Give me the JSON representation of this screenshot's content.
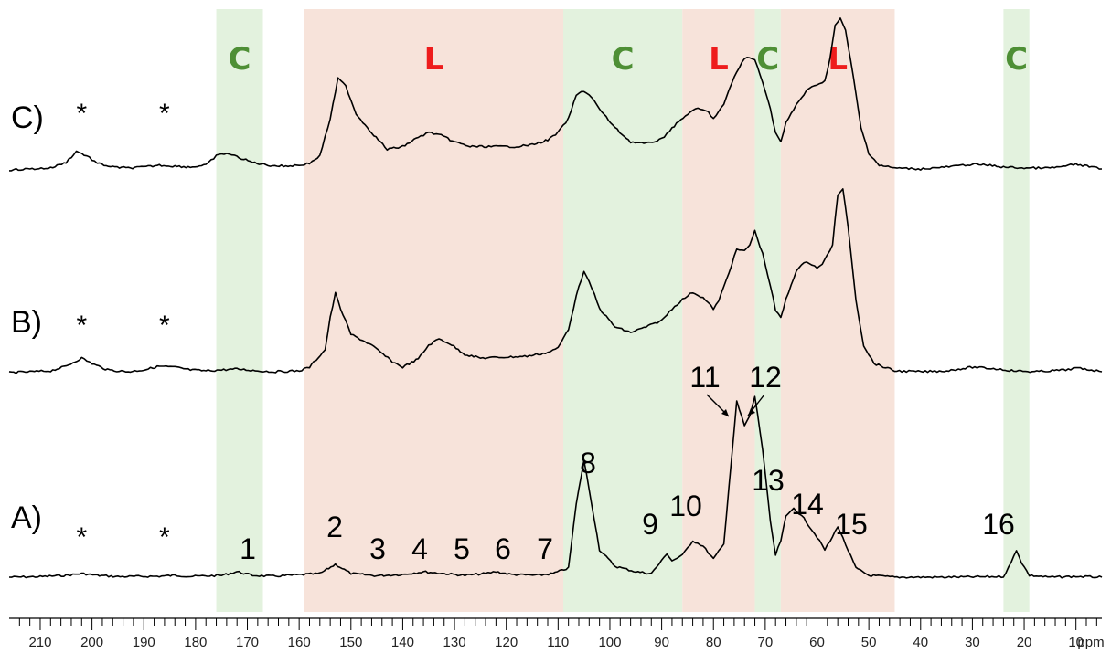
{
  "chart_data": {
    "type": "line",
    "x_axis": {
      "reversed": true,
      "range": [
        216,
        5
      ],
      "major_ticks": [
        210,
        200,
        190,
        180,
        170,
        160,
        150,
        140,
        130,
        120,
        110,
        100,
        90,
        80,
        70,
        60,
        50,
        40,
        30,
        20,
        10
      ],
      "unit_label": "ppm",
      "minor_tick_step": 2
    },
    "bands": [
      {
        "label": "C",
        "from": 176,
        "to": 167,
        "color": "#e3f2de",
        "label_color": "#4e8f35"
      },
      {
        "label": "L",
        "from": 159,
        "to": 109,
        "color": "#f7e3da",
        "label_color": "#ee1c1c"
      },
      {
        "label": "C",
        "from": 109,
        "to": 86,
        "color": "#e3f2de",
        "label_color": "#4e8f35"
      },
      {
        "label": "L",
        "from": 86,
        "to": 72,
        "color": "#f7e3da",
        "label_color": "#ee1c1c"
      },
      {
        "label": "C",
        "from": 72,
        "to": 67,
        "color": "#e3f2de",
        "label_color": "#4e8f35"
      },
      {
        "label": "L",
        "from": 67,
        "to": 45,
        "color": "#f7e3da",
        "label_color": "#ee1c1c"
      },
      {
        "label": "C",
        "from": 24,
        "to": 19,
        "color": "#e3f2de",
        "label_color": "#4e8f35"
      }
    ],
    "series": [
      {
        "name": "A)",
        "baseline_value": 0,
        "points": [
          [
            216,
            0
          ],
          [
            210,
            0.3
          ],
          [
            205,
            1
          ],
          [
            202,
            2
          ],
          [
            199,
            1
          ],
          [
            195,
            0.3
          ],
          [
            187,
            0.5
          ],
          [
            184,
            1
          ],
          [
            181,
            0.4
          ],
          [
            175,
            1
          ],
          [
            172,
            3
          ],
          [
            169,
            1
          ],
          [
            165,
            0.5
          ],
          [
            156,
            2
          ],
          [
            153,
            7
          ],
          [
            150,
            2
          ],
          [
            145,
            0.8
          ],
          [
            140,
            1.5
          ],
          [
            136,
            3
          ],
          [
            132,
            2
          ],
          [
            128,
            1
          ],
          [
            124,
            2
          ],
          [
            122,
            3
          ],
          [
            119,
            1.5
          ],
          [
            114,
            1
          ],
          [
            111,
            2
          ],
          [
            108,
            5
          ],
          [
            106.5,
            40
          ],
          [
            105,
            64
          ],
          [
            103.5,
            40
          ],
          [
            102,
            15
          ],
          [
            99,
            6
          ],
          [
            95,
            3
          ],
          [
            92,
            2
          ],
          [
            90,
            9
          ],
          [
            89,
            13
          ],
          [
            88,
            9
          ],
          [
            86,
            12
          ],
          [
            84,
            20
          ],
          [
            82,
            17
          ],
          [
            80,
            10
          ],
          [
            78,
            18
          ],
          [
            77,
            50
          ],
          [
            75.5,
            96
          ],
          [
            74,
            83
          ],
          [
            73,
            88
          ],
          [
            72,
            99
          ],
          [
            70.5,
            70
          ],
          [
            69,
            30
          ],
          [
            68,
            12
          ],
          [
            67,
            20
          ],
          [
            66,
            33
          ],
          [
            64.5,
            38
          ],
          [
            62.5,
            32
          ],
          [
            60,
            22
          ],
          [
            58.5,
            15
          ],
          [
            57,
            22
          ],
          [
            56,
            28
          ],
          [
            54.5,
            18
          ],
          [
            52.5,
            5
          ],
          [
            50,
            1
          ],
          [
            45,
            0
          ],
          [
            35,
            0
          ],
          [
            28,
            0.2
          ],
          [
            24,
            0.4
          ],
          [
            22.5,
            8
          ],
          [
            21.5,
            15
          ],
          [
            20.5,
            8
          ],
          [
            19,
            1
          ],
          [
            15,
            0
          ],
          [
            10,
            0.4
          ],
          [
            5,
            0
          ]
        ]
      },
      {
        "name": "B)",
        "baseline_value": 0,
        "points": [
          [
            216,
            0
          ],
          [
            208,
            2
          ],
          [
            205,
            7
          ],
          [
            202,
            16
          ],
          [
            200,
            10
          ],
          [
            197,
            3
          ],
          [
            193,
            1
          ],
          [
            190,
            3
          ],
          [
            187,
            7
          ],
          [
            184,
            6
          ],
          [
            181,
            3
          ],
          [
            178,
            2
          ],
          [
            175,
            3
          ],
          [
            172,
            4
          ],
          [
            168,
            2
          ],
          [
            165,
            1
          ],
          [
            160,
            2
          ],
          [
            158,
            6
          ],
          [
            155,
            25
          ],
          [
            154,
            60
          ],
          [
            153,
            87
          ],
          [
            152,
            70
          ],
          [
            150,
            42
          ],
          [
            146,
            30
          ],
          [
            142,
            12
          ],
          [
            140,
            6
          ],
          [
            137,
            15
          ],
          [
            135,
            30
          ],
          [
            133,
            37
          ],
          [
            131,
            32
          ],
          [
            128,
            20
          ],
          [
            125,
            16
          ],
          [
            120,
            17
          ],
          [
            116,
            18
          ],
          [
            112,
            22
          ],
          [
            110,
            27
          ],
          [
            108,
            48
          ],
          [
            106,
            95
          ],
          [
            105,
            110
          ],
          [
            103.5,
            93
          ],
          [
            102,
            70
          ],
          [
            99,
            50
          ],
          [
            96,
            44
          ],
          [
            93,
            50
          ],
          [
            90,
            57
          ],
          [
            88,
            70
          ],
          [
            86,
            80
          ],
          [
            84,
            88
          ],
          [
            82,
            82
          ],
          [
            80,
            70
          ],
          [
            79,
            78
          ],
          [
            77,
            110
          ],
          [
            75.5,
            135
          ],
          [
            74,
            133
          ],
          [
            73,
            140
          ],
          [
            72,
            155
          ],
          [
            70.5,
            130
          ],
          [
            69,
            95
          ],
          [
            68,
            68
          ],
          [
            67,
            60
          ],
          [
            66,
            80
          ],
          [
            64,
            112
          ],
          [
            62,
            122
          ],
          [
            60,
            115
          ],
          [
            59,
            118
          ],
          [
            57,
            140
          ],
          [
            56,
            195
          ],
          [
            55,
            200
          ],
          [
            54,
            160
          ],
          [
            52.5,
            80
          ],
          [
            51,
            30
          ],
          [
            49,
            10
          ],
          [
            45,
            2
          ],
          [
            40,
            1
          ],
          [
            35,
            2
          ],
          [
            30,
            6
          ],
          [
            25,
            4
          ],
          [
            22,
            2
          ],
          [
            18,
            1
          ],
          [
            15,
            2
          ],
          [
            12,
            3
          ],
          [
            10,
            5
          ],
          [
            7,
            3
          ],
          [
            5,
            1
          ]
        ]
      },
      {
        "name": "C)",
        "baseline_value": 0,
        "points": [
          [
            216,
            0
          ],
          [
            208,
            2
          ],
          [
            205,
            8
          ],
          [
            203,
            20
          ],
          [
            201,
            15
          ],
          [
            199,
            7
          ],
          [
            196,
            3
          ],
          [
            193,
            2
          ],
          [
            190,
            3
          ],
          [
            187,
            5
          ],
          [
            184,
            4
          ],
          [
            181,
            3
          ],
          [
            178,
            5
          ],
          [
            176,
            15
          ],
          [
            174,
            18
          ],
          [
            172,
            14
          ],
          [
            169,
            8
          ],
          [
            166,
            5
          ],
          [
            163,
            4
          ],
          [
            160,
            5
          ],
          [
            158,
            7
          ],
          [
            156,
            15
          ],
          [
            154,
            55
          ],
          [
            152.5,
            98
          ],
          [
            151,
            90
          ],
          [
            149,
            60
          ],
          [
            146,
            40
          ],
          [
            143,
            22
          ],
          [
            140,
            25
          ],
          [
            137,
            35
          ],
          [
            135,
            40
          ],
          [
            133,
            38
          ],
          [
            130,
            30
          ],
          [
            127,
            25
          ],
          [
            122,
            25
          ],
          [
            118,
            25
          ],
          [
            115,
            27
          ],
          [
            112,
            32
          ],
          [
            110,
            40
          ],
          [
            108,
            55
          ],
          [
            106.5,
            80
          ],
          [
            105,
            85
          ],
          [
            103.5,
            78
          ],
          [
            102,
            65
          ],
          [
            99,
            45
          ],
          [
            96,
            30
          ],
          [
            93,
            28
          ],
          [
            90,
            33
          ],
          [
            88,
            45
          ],
          [
            85,
            60
          ],
          [
            83,
            66
          ],
          [
            81,
            62
          ],
          [
            80,
            55
          ],
          [
            78,
            70
          ],
          [
            76,
            100
          ],
          [
            74,
            120
          ],
          [
            73,
            120
          ],
          [
            72,
            118
          ],
          [
            70.5,
            95
          ],
          [
            69,
            65
          ],
          [
            68,
            40
          ],
          [
            67,
            30
          ],
          [
            66,
            50
          ],
          [
            64,
            70
          ],
          [
            62,
            85
          ],
          [
            60,
            92
          ],
          [
            58.5,
            95
          ],
          [
            57.5,
            120
          ],
          [
            56.5,
            155
          ],
          [
            55.5,
            162
          ],
          [
            54.5,
            150
          ],
          [
            53,
            100
          ],
          [
            51.5,
            45
          ],
          [
            50,
            18
          ],
          [
            48,
            5
          ],
          [
            45,
            2
          ],
          [
            40,
            1
          ],
          [
            35,
            3
          ],
          [
            30,
            6
          ],
          [
            27,
            5
          ],
          [
            24,
            3
          ],
          [
            20,
            2
          ],
          [
            15,
            2
          ],
          [
            12,
            4
          ],
          [
            10,
            6
          ],
          [
            7,
            3
          ],
          [
            5,
            1
          ]
        ]
      }
    ],
    "series_labels": [
      "A)",
      "B)",
      "C)"
    ],
    "peak_labels": [
      {
        "text": "1",
        "x": 172,
        "series": "A)"
      },
      {
        "text": "2",
        "x": 153,
        "series": "A)"
      },
      {
        "text": "3",
        "x": 146,
        "series": "A)"
      },
      {
        "text": "4",
        "x": 137,
        "series": "A)"
      },
      {
        "text": "5",
        "x": 127,
        "series": "A)"
      },
      {
        "text": "6",
        "x": 117,
        "series": "A)"
      },
      {
        "text": "7",
        "x": 107,
        "series": "A)"
      },
      {
        "text": "8",
        "x": 105,
        "series": "A)"
      },
      {
        "text": "9",
        "x": 89,
        "series": "A)"
      },
      {
        "text": "10",
        "x": 83,
        "series": "A)"
      },
      {
        "text": "11",
        "x": 76,
        "series": "A)"
      },
      {
        "text": "12",
        "x": 71,
        "series": "A)"
      },
      {
        "text": "13",
        "x": 72,
        "series": "A)"
      },
      {
        "text": "14",
        "x": 62,
        "series": "A)"
      },
      {
        "text": "15",
        "x": 53,
        "series": "A)"
      },
      {
        "text": "16",
        "x": 21,
        "series": "A)"
      }
    ],
    "asterisks": {
      "symbol": "*",
      "x": [
        202,
        186
      ]
    }
  }
}
